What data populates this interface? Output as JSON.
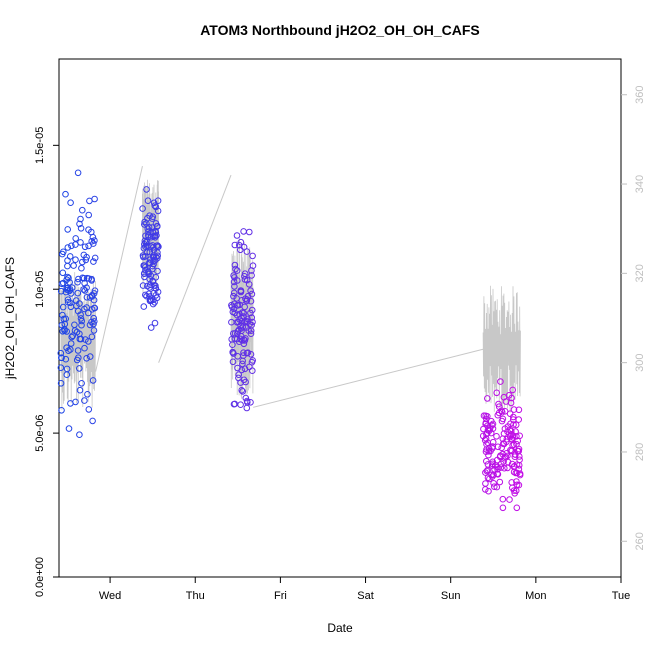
{
  "chart_data": {
    "type": "scatter",
    "title": "ATOM3 Northbound jH2O2_OH_OH_CAFS",
    "xlabel": "Date",
    "ylabel": "jH2O2_OH_OH_CAFS",
    "x_tick_labels": [
      "Wed",
      "Thu",
      "Fri",
      "Sat",
      "Sun",
      "Mon",
      "Tue"
    ],
    "x_tick_values": [
      1,
      2,
      3,
      4,
      5,
      6,
      7
    ],
    "xlim": [
      0.4,
      7.0
    ],
    "ylim": [
      0,
      1.8e-05
    ],
    "y_ticks": [
      0,
      5e-06,
      1e-05,
      1.5e-05
    ],
    "y_tick_labels": [
      "0.0e+00",
      "5.0e-06",
      "1.0e-05",
      "1.5e-05"
    ],
    "y2lim": [
      252,
      368
    ],
    "y2_ticks": [
      260,
      280,
      300,
      320,
      340,
      360
    ],
    "y2_tick_labels": [
      "260",
      "280",
      "300",
      "320",
      "340",
      "360"
    ],
    "colors": {
      "points_start": "#1e46e6",
      "points_end": "#e600e6",
      "secondary_line": "#c8c8c8"
    },
    "flights": [
      {
        "start": 0.42,
        "end": 0.83,
        "y_center": 9.6e-06,
        "y_spread": 3.2e-06,
        "n_points": 150,
        "y2_center": 305,
        "y2_spread": 12
      },
      {
        "start": 1.38,
        "end": 1.57,
        "y_center": 1.12e-05,
        "y_spread": 1.7e-06,
        "n_points": 110,
        "y2_center": 328,
        "y2_spread": 10
      },
      {
        "start": 2.42,
        "end": 2.68,
        "y_center": 8.9e-06,
        "y_spread": 2.3e-06,
        "n_points": 130,
        "y2_center": 310,
        "y2_spread": 14
      },
      {
        "start": 5.38,
        "end": 5.82,
        "y_center": 4.4e-06,
        "y_spread": 1.6e-06,
        "n_points": 160,
        "y2_center": 303,
        "y2_spread": 11
      }
    ],
    "secondary_series": {
      "axis": "right",
      "description": "line",
      "connectors": [
        [
          [
            0.83,
            298
          ],
          [
            1.38,
            344
          ]
        ],
        [
          [
            1.57,
            300
          ],
          [
            2.42,
            342
          ]
        ],
        [
          [
            2.68,
            290
          ],
          [
            5.38,
            303
          ]
        ]
      ]
    }
  }
}
